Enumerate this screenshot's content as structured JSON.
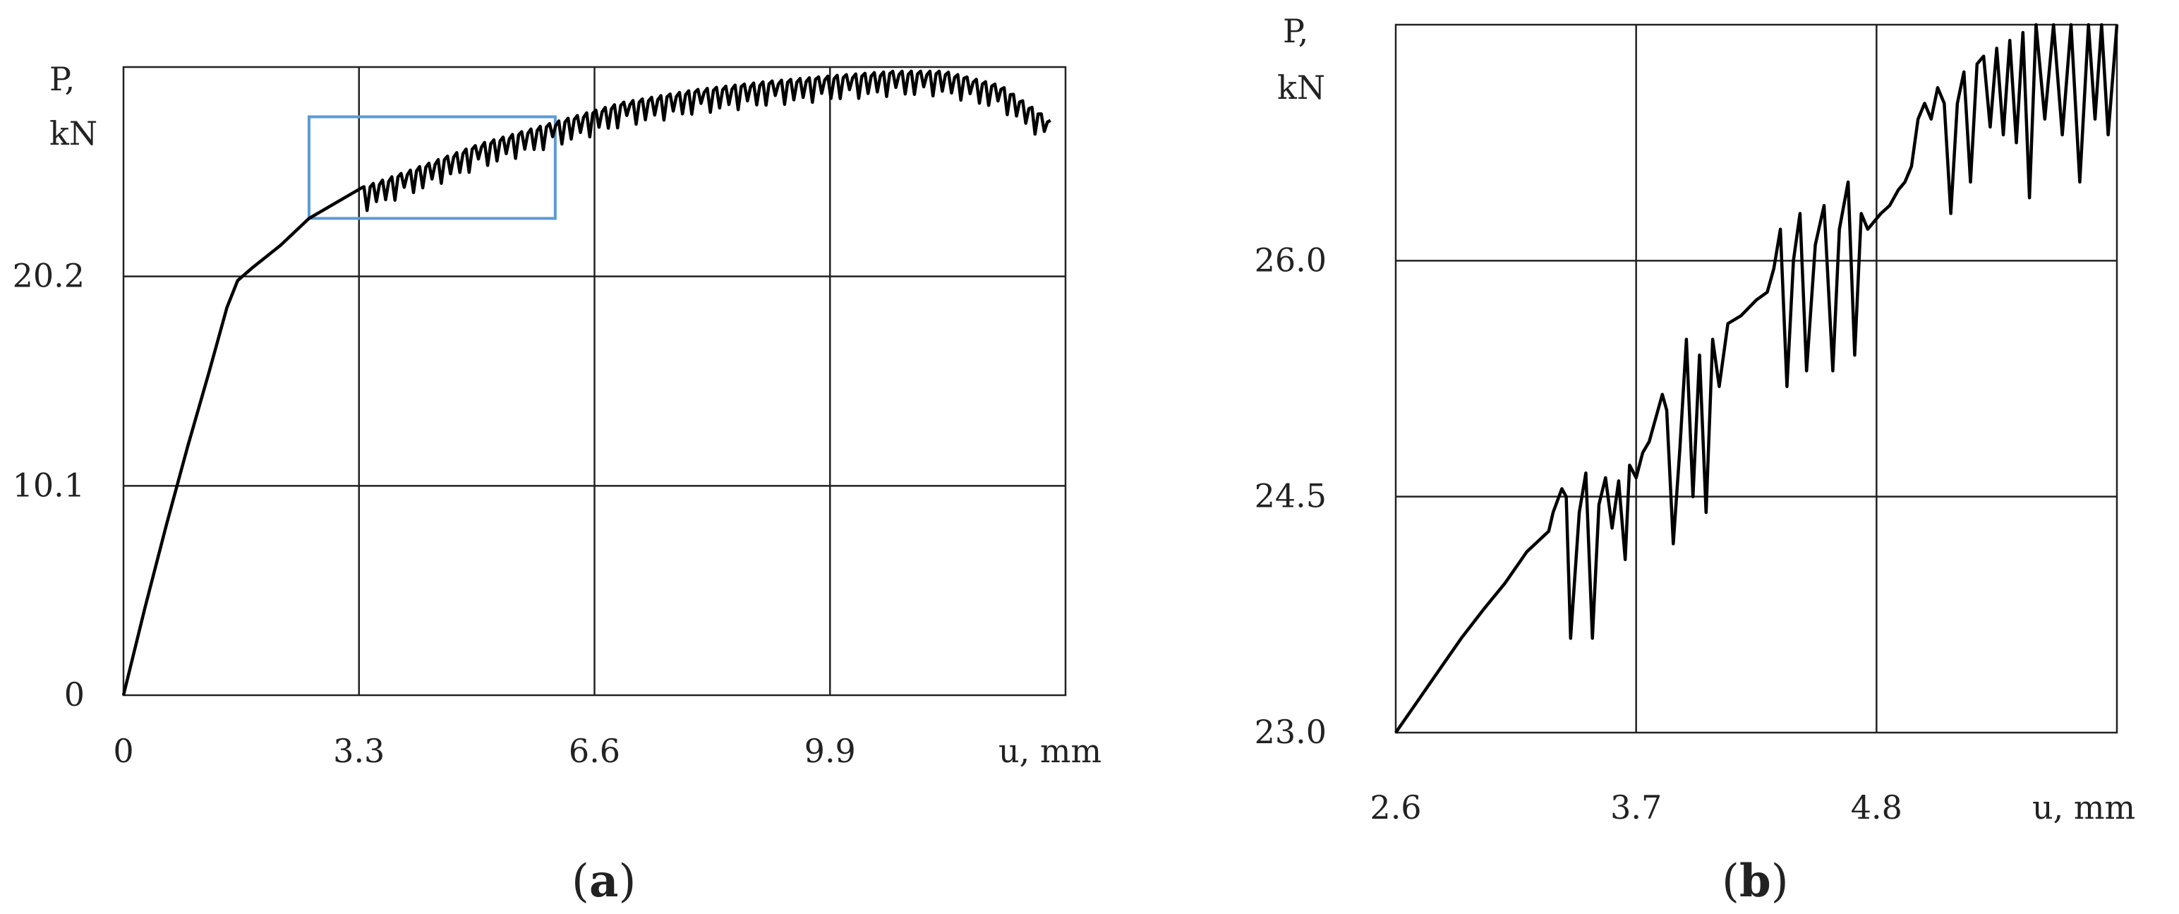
{
  "chart_data": [
    {
      "panel": "a",
      "type": "line",
      "panel_label_open": "(",
      "panel_label_letter": "a",
      "panel_label_close": ")",
      "title": "",
      "ylabel_line1": "P,",
      "ylabel_line2": "kN",
      "xlabel": "u, mm",
      "xlim": [
        0,
        13.2
      ],
      "ylim": [
        0,
        30.3
      ],
      "x_ticks": [
        0,
        3.3,
        6.6,
        9.9
      ],
      "x_tick_labels": [
        "0",
        "3.3",
        "6.6",
        "9.9"
      ],
      "y_ticks": [
        0,
        10.1,
        20.2
      ],
      "y_tick_labels": [
        "0",
        "10.1",
        "20.2"
      ],
      "grid": true,
      "highlight_box": {
        "x": [
          2.6,
          6.05
        ],
        "y": [
          23.0,
          27.9
        ],
        "color": "#5b9bd5"
      },
      "series": [
        {
          "color": "#000000",
          "smooth": [
            [
              0,
              0
            ],
            [
              0.3,
              4.2
            ],
            [
              0.6,
              8.2
            ],
            [
              0.9,
              12.0
            ],
            [
              1.2,
              15.6
            ],
            [
              1.45,
              18.7
            ],
            [
              1.6,
              20.0
            ],
            [
              1.8,
              20.6
            ],
            [
              2.2,
              21.7
            ],
            [
              2.6,
              23.0
            ],
            [
              3.0,
              23.8
            ],
            [
              3.35,
              24.5
            ]
          ],
          "serrated_from": 3.35,
          "envelope_top": [
            [
              3.35,
              24.5
            ],
            [
              4.0,
              25.3
            ],
            [
              5.0,
              26.6
            ],
            [
              6.0,
              27.6
            ],
            [
              7.0,
              28.6
            ],
            [
              8.0,
              29.2
            ],
            [
              9.0,
              29.6
            ],
            [
              10.0,
              29.9
            ],
            [
              10.8,
              30.1
            ],
            [
              11.5,
              30.1
            ],
            [
              12.3,
              29.4
            ],
            [
              13.0,
              27.7
            ]
          ],
          "drop_depth": 1.2,
          "serration_period": 0.13
        }
      ]
    },
    {
      "panel": "b",
      "type": "line",
      "panel_label_open": "(",
      "panel_label_letter": "b",
      "panel_label_close": ")",
      "title": "",
      "ylabel_line1": "P,",
      "ylabel_line2": "kN",
      "xlabel": "u, mm",
      "xlim": [
        2.6,
        5.9
      ],
      "ylim": [
        23.0,
        27.5
      ],
      "x_ticks": [
        2.6,
        3.7,
        4.8
      ],
      "x_tick_labels": [
        "2.6",
        "3.7",
        "4.8"
      ],
      "y_ticks": [
        23.0,
        24.5,
        26.0
      ],
      "y_tick_labels": [
        "23.0",
        "24.5",
        "26.0"
      ],
      "grid": true,
      "series": [
        {
          "color": "#000000",
          "points": [
            [
              2.6,
              23.0
            ],
            [
              2.7,
              23.2
            ],
            [
              2.8,
              23.4
            ],
            [
              2.9,
              23.6
            ],
            [
              3.0,
              23.78
            ],
            [
              3.1,
              23.95
            ],
            [
              3.2,
              24.15
            ],
            [
              3.3,
              24.28
            ],
            [
              3.32,
              24.4
            ],
            [
              3.36,
              24.55
            ],
            [
              3.38,
              24.5
            ],
            [
              3.4,
              23.6
            ],
            [
              3.44,
              24.4
            ],
            [
              3.47,
              24.65
            ],
            [
              3.5,
              23.6
            ],
            [
              3.53,
              24.45
            ],
            [
              3.56,
              24.62
            ],
            [
              3.59,
              24.3
            ],
            [
              3.62,
              24.6
            ],
            [
              3.65,
              24.1
            ],
            [
              3.67,
              24.7
            ],
            [
              3.7,
              24.62
            ],
            [
              3.73,
              24.78
            ],
            [
              3.76,
              24.85
            ],
            [
              3.79,
              25.0
            ],
            [
              3.82,
              25.15
            ],
            [
              3.84,
              25.05
            ],
            [
              3.87,
              24.2
            ],
            [
              3.9,
              24.8
            ],
            [
              3.93,
              25.5
            ],
            [
              3.96,
              24.5
            ],
            [
              3.99,
              25.4
            ],
            [
              4.02,
              24.4
            ],
            [
              4.05,
              25.5
            ],
            [
              4.08,
              25.2
            ],
            [
              4.12,
              25.6
            ],
            [
              4.18,
              25.65
            ],
            [
              4.25,
              25.75
            ],
            [
              4.3,
              25.8
            ],
            [
              4.33,
              25.95
            ],
            [
              4.36,
              26.2
            ],
            [
              4.39,
              25.2
            ],
            [
              4.42,
              26.0
            ],
            [
              4.45,
              26.3
            ],
            [
              4.48,
              25.3
            ],
            [
              4.52,
              26.1
            ],
            [
              4.56,
              26.35
            ],
            [
              4.6,
              25.3
            ],
            [
              4.63,
              26.2
            ],
            [
              4.67,
              26.5
            ],
            [
              4.7,
              25.4
            ],
            [
              4.73,
              26.3
            ],
            [
              4.76,
              26.2
            ],
            [
              4.82,
              26.3
            ],
            [
              4.86,
              26.35
            ],
            [
              4.9,
              26.45
            ],
            [
              4.93,
              26.5
            ],
            [
              4.96,
              26.6
            ],
            [
              4.99,
              26.9
            ],
            [
              5.02,
              27.0
            ],
            [
              5.05,
              26.9
            ],
            [
              5.08,
              27.1
            ],
            [
              5.11,
              27.0
            ],
            [
              5.14,
              26.3
            ],
            [
              5.17,
              27.0
            ],
            [
              5.2,
              27.2
            ],
            [
              5.23,
              26.5
            ],
            [
              5.26,
              27.25
            ],
            [
              5.29,
              27.3
            ],
            [
              5.32,
              26.85
            ],
            [
              5.35,
              27.35
            ],
            [
              5.38,
              26.8
            ],
            [
              5.41,
              27.4
            ],
            [
              5.44,
              26.75
            ],
            [
              5.47,
              27.45
            ],
            [
              5.5,
              26.4
            ],
            [
              5.53,
              27.5
            ],
            [
              5.57,
              26.9
            ],
            [
              5.61,
              27.5
            ],
            [
              5.65,
              26.8
            ],
            [
              5.69,
              27.5
            ],
            [
              5.73,
              26.5
            ],
            [
              5.77,
              27.5
            ],
            [
              5.8,
              26.9
            ],
            [
              5.83,
              27.5
            ],
            [
              5.86,
              26.8
            ],
            [
              5.9,
              27.5
            ]
          ]
        }
      ]
    }
  ]
}
